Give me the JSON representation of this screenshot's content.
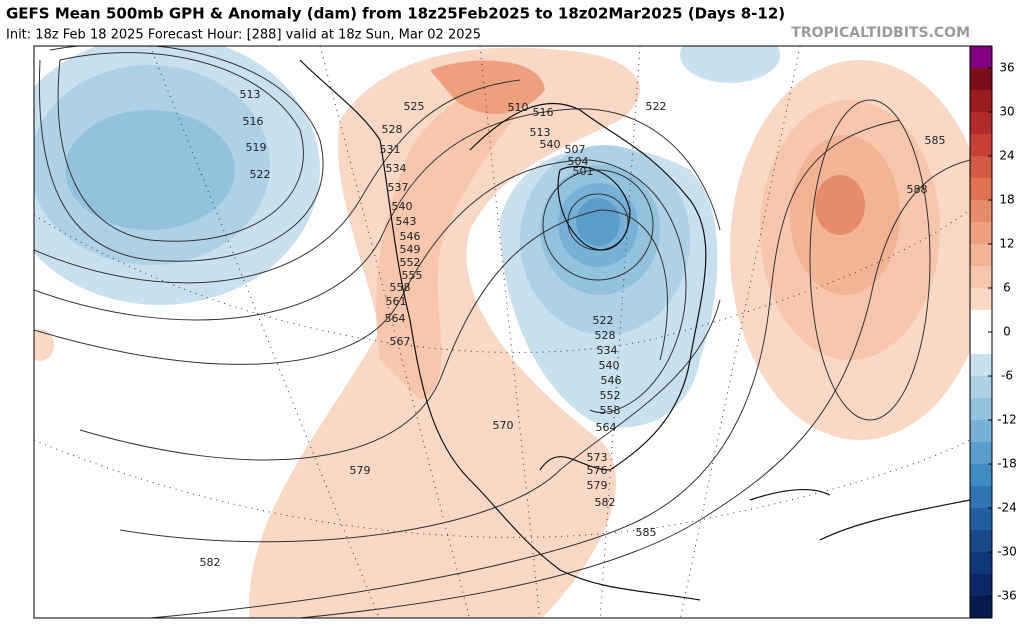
{
  "header": {
    "title": "GEFS Mean 500mb GPH & Anomaly (dam) from 18z25Feb2025 to 18z02Mar2025 (Days 8-12)",
    "subtitle": "Init: 18z Feb 18 2025   Forecast Hour: [288]   valid at 18z Sun, Mar 02 2025",
    "brand": "TROPICALTIDBITS.COM"
  },
  "colorbar": {
    "ylim": [
      -39,
      39
    ],
    "yticks": [
      36,
      30,
      24,
      18,
      12,
      6,
      0,
      -6,
      -12,
      -18,
      -24,
      -30,
      -36
    ],
    "colors": [
      "#800080",
      "#7a0d1a",
      "#9b1b1f",
      "#b22a2a",
      "#c84033",
      "#d35a43",
      "#df7354",
      "#e78c6a",
      "#ee9f7e",
      "#f3b395",
      "#f7c6ad",
      "#fad8c6",
      "#ffffff",
      "#ffffff",
      "#c9e0ee",
      "#afd1e6",
      "#93c2de",
      "#77b1d6",
      "#5b9ecc",
      "#418ac1",
      "#2f74b3",
      "#225ea0",
      "#184a8a",
      "#10377a",
      "#0b2766",
      "#061a4d"
    ]
  },
  "contour_labels": [
    "513",
    "516",
    "519",
    "522",
    "525",
    "528",
    "531",
    "534",
    "537",
    "540",
    "543",
    "546",
    "549",
    "552",
    "555",
    "558",
    "561",
    "564",
    "567",
    "570",
    "579",
    "582",
    "582",
    "585",
    "579",
    "576",
    "573",
    "564",
    "558",
    "552",
    "546",
    "540",
    "534",
    "528",
    "522",
    "507",
    "504",
    "501",
    "510",
    "516",
    "513",
    "540",
    "522",
    "585",
    "588"
  ]
}
